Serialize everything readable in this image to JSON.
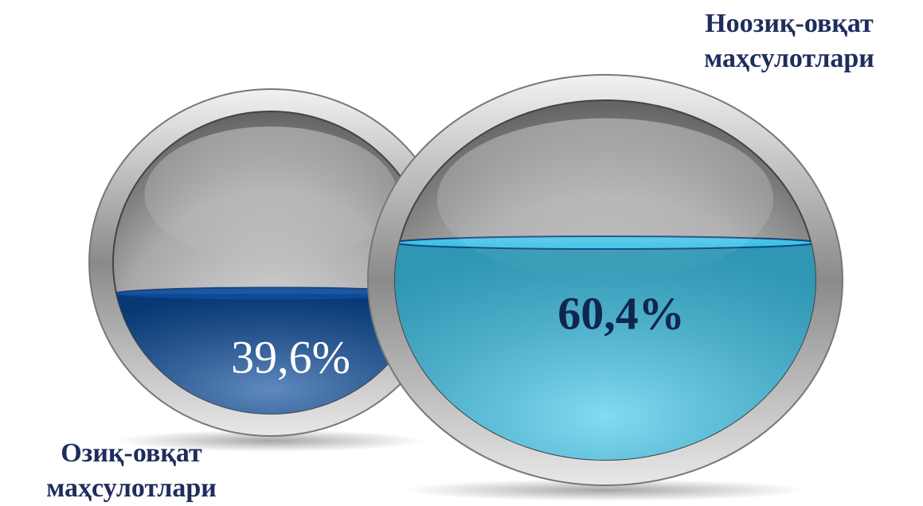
{
  "chart_data": {
    "type": "sphere-fill",
    "categories": [
      "Озиқ-овқат маҳсулотлари",
      "Ноозиқ-овқат маҳсулотлари"
    ],
    "values": [
      39.6,
      60.4
    ],
    "value_labels": [
      "39,6%",
      "60,4%"
    ],
    "colors": [
      "#0b4c9c",
      "#3fc8ee"
    ]
  }
}
